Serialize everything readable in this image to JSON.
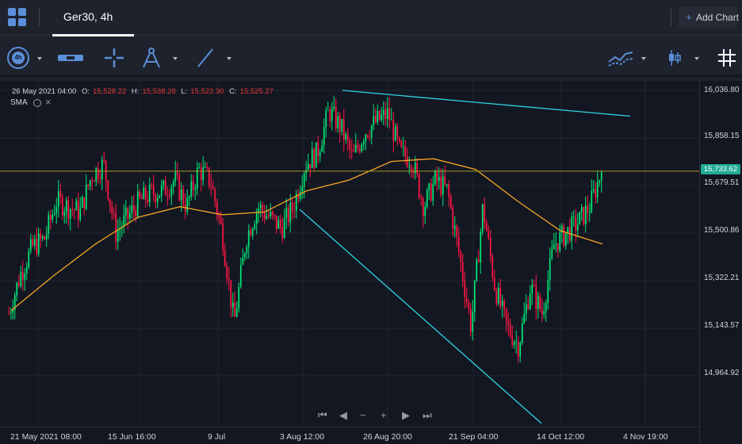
{
  "tabbar": {
    "tab_title": "Ger30, 4h",
    "add_chart_label": "Add Chart"
  },
  "toolbar": {
    "timeframe_badge": "4h"
  },
  "legend": {
    "date": "26 May 2021 04:00",
    "open_key": "O:",
    "open": "15,528.22",
    "high_key": "H:",
    "high": "15,538.28",
    "low_key": "L:",
    "low": "15,522.30",
    "close_key": "C:",
    "close": "15,525.27",
    "indicator": "SMA"
  },
  "price_axis": [
    "16,036.80",
    "15,858.15",
    "15,679.51",
    "15,500.86",
    "15,322.21",
    "15,143.57",
    "14,964.92"
  ],
  "last_price": "15,733.62",
  "time_axis": [
    "21 May 2021 08:00",
    "15 Jun 16:00",
    "9 Jul",
    "3 Aug 12:00",
    "26 Aug 20:00",
    "21 Sep 04:00",
    "14 Oct 12:00",
    "4 Nov 19:00"
  ],
  "colors": {
    "up": "#00e676",
    "down": "#ff1744",
    "sma": "#f5a623",
    "trendline": "#2dd4e0",
    "hline": "#a89a2a",
    "accent": "#5b8fd9"
  },
  "chart_data": {
    "type": "candlestick",
    "symbol": "Ger30",
    "interval": "4h",
    "ylim": [
      14880,
      16050
    ],
    "price_series_close": [
      [
        "21 May",
        15200
      ],
      [
        "24 May",
        15350
      ],
      [
        "27 May",
        15450
      ],
      [
        "31 May",
        15480
      ],
      [
        "3 Jun",
        15620
      ],
      [
        "7 Jun",
        15600
      ],
      [
        "10 Jun",
        15580
      ],
      [
        "14 Jun",
        15720
      ],
      [
        "15 Jun",
        15760
      ],
      [
        "18 Jun",
        15500
      ],
      [
        "21 Jun",
        15560
      ],
      [
        "24 Jun",
        15620
      ],
      [
        "28 Jun",
        15650
      ],
      [
        "1 Jul",
        15660
      ],
      [
        "5 Jul",
        15700
      ],
      [
        "8 Jul",
        15600
      ],
      [
        "9 Jul",
        15740
      ],
      [
        "12 Jul",
        15700
      ],
      [
        "15 Jul",
        15500
      ],
      [
        "19 Jul",
        15160
      ],
      [
        "21 Jul",
        15480
      ],
      [
        "23 Jul",
        15600
      ],
      [
        "27 Jul",
        15560
      ],
      [
        "30 Jul",
        15520
      ],
      [
        "3 Aug",
        15600
      ],
      [
        "6 Aug",
        15760
      ],
      [
        "10 Aug",
        15800
      ],
      [
        "13 Aug",
        15960
      ],
      [
        "17 Aug",
        15900
      ],
      [
        "20 Aug",
        15780
      ],
      [
        "24 Aug",
        15880
      ],
      [
        "26 Aug",
        15920
      ],
      [
        "30 Aug",
        15950
      ],
      [
        "2 Sep",
        15800
      ],
      [
        "6 Sep",
        15780
      ],
      [
        "9 Sep",
        15600
      ],
      [
        "13 Sep",
        15700
      ],
      [
        "16 Sep",
        15660
      ],
      [
        "20 Sep",
        15420
      ],
      [
        "21 Sep",
        15150
      ],
      [
        "24 Sep",
        15600
      ],
      [
        "28 Sep",
        15300
      ],
      [
        "1 Oct",
        15150
      ],
      [
        "5 Oct",
        15080
      ],
      [
        "8 Oct",
        15300
      ],
      [
        "12 Oct",
        15200
      ],
      [
        "14 Oct",
        15460
      ],
      [
        "18 Oct",
        15500
      ],
      [
        "21 Oct",
        15540
      ],
      [
        "25 Oct",
        15600
      ],
      [
        "27 Oct",
        15733.62
      ]
    ],
    "sma_series": [
      [
        "21 May",
        15210
      ],
      [
        "3 Jun",
        15340
      ],
      [
        "15 Jun",
        15460
      ],
      [
        "28 Jun",
        15560
      ],
      [
        "9 Jul",
        15600
      ],
      [
        "21 Jul",
        15570
      ],
      [
        "3 Aug",
        15580
      ],
      [
        "17 Aug",
        15660
      ],
      [
        "26 Aug",
        15700
      ],
      [
        "6 Sep",
        15770
      ],
      [
        "16 Sep",
        15780
      ],
      [
        "24 Sep",
        15740
      ],
      [
        "5 Oct",
        15620
      ],
      [
        "14 Oct",
        15510
      ],
      [
        "27 Oct",
        15460
      ]
    ],
    "horizontal_line": 15733.62,
    "trendlines": [
      {
        "from": [
          "13 Aug",
          16036.8
        ],
        "to": [
          "4 Nov",
          15940
        ]
      },
      {
        "from": [
          "3 Aug",
          15590
        ],
        "to": [
          "12 Oct",
          14900
        ]
      }
    ]
  }
}
